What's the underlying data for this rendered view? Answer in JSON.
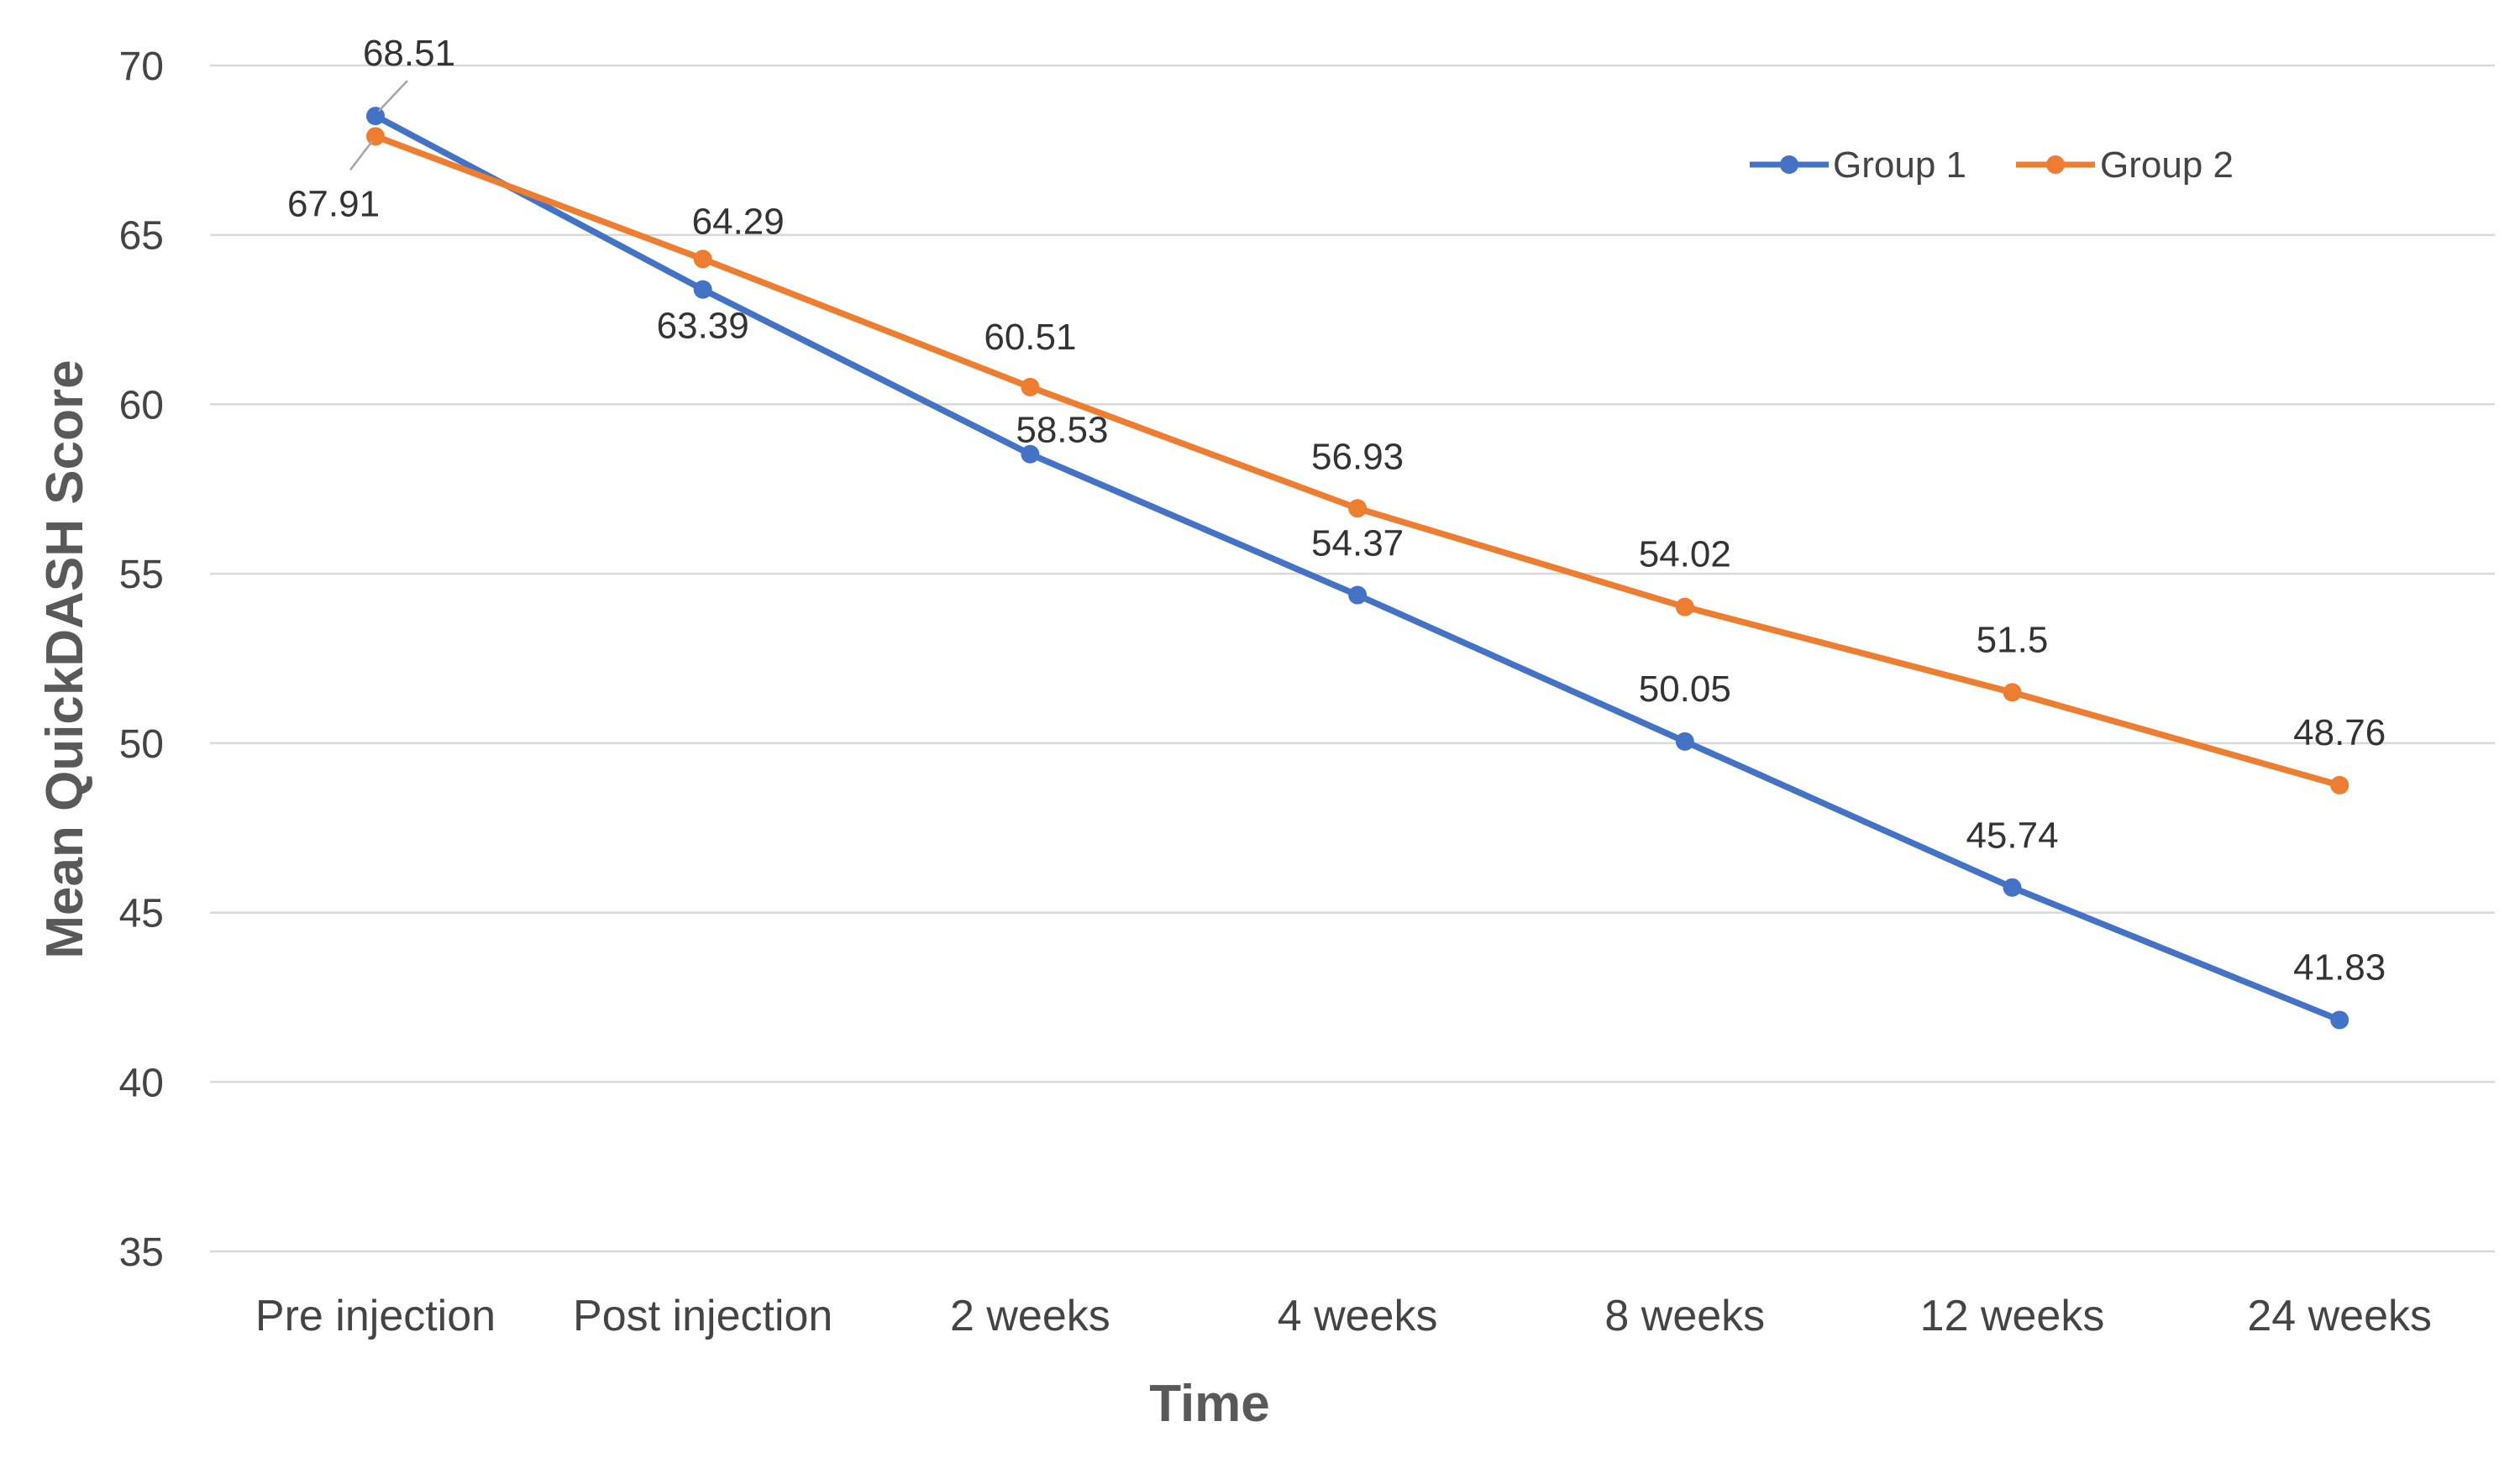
{
  "chart_data": {
    "type": "line",
    "title": "",
    "xlabel": "Time",
    "ylabel": "Mean QuickDASH Score",
    "categories": [
      "Pre injection",
      "Post injection",
      "2 weeks",
      "4 weeks",
      "8 weeks",
      "12 weeks",
      "24 weeks"
    ],
    "ylim": [
      35,
      70
    ],
    "yticks": [
      35,
      40,
      45,
      50,
      55,
      60,
      65,
      70
    ],
    "grid": true,
    "legend": "top-right",
    "series": [
      {
        "name": "Group 1",
        "color": "#4472C4",
        "values": [
          68.51,
          63.39,
          58.53,
          54.37,
          50.05,
          45.74,
          41.83
        ],
        "labels": [
          "68.51",
          "63.39",
          "58.53",
          "54.37",
          "50.05",
          "45.74",
          "41.83"
        ]
      },
      {
        "name": "Group 2",
        "color": "#ED7D31",
        "values": [
          67.91,
          64.29,
          60.51,
          56.93,
          54.02,
          51.5,
          48.76
        ],
        "labels": [
          "67.91",
          "64.29",
          "60.51",
          "56.93",
          "54.02",
          "51.5",
          "48.76"
        ]
      }
    ]
  }
}
